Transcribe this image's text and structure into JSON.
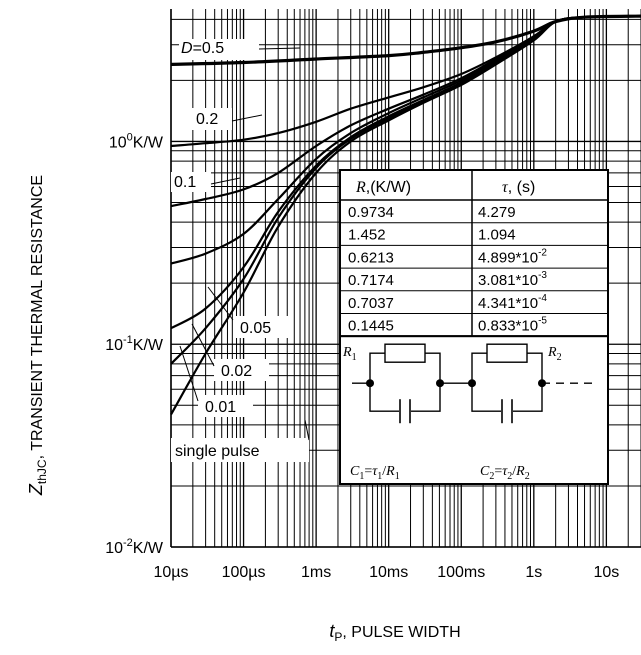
{
  "chart_data": {
    "type": "line",
    "title": "",
    "xlabel": "t",
    "xlabel_sub": "P",
    "xlabel_rest": ", PULSE WIDTH",
    "ylabel": "Z",
    "ylabel_sub": "thJC",
    "ylabel_rest": ", TRANSIENT THERMAL RESISTANCE",
    "x_scale": "log",
    "y_scale": "log",
    "xlim": [
      1e-05,
      30
    ],
    "ylim": [
      0.01,
      4.5
    ],
    "grid": true,
    "x_ticks": [
      {
        "value": 1e-05,
        "label": "10µs"
      },
      {
        "value": 0.0001,
        "label": "100µs"
      },
      {
        "value": 0.001,
        "label": "1ms"
      },
      {
        "value": 0.01,
        "label": "10ms"
      },
      {
        "value": 0.1,
        "label": "100ms"
      },
      {
        "value": 1,
        "label": "1s"
      },
      {
        "value": 10,
        "label": "10s"
      }
    ],
    "y_ticks": [
      {
        "value": 1,
        "base": "10",
        "exp": "0",
        "unit": "K/W"
      },
      {
        "value": 0.1,
        "base": "10",
        "exp": "-1",
        "unit": "K/W"
      },
      {
        "value": 0.01,
        "base": "10",
        "exp": "-2",
        "unit": "K/W"
      }
    ],
    "series": [
      {
        "name": "D=0.5",
        "label_main": "D",
        "label_rest": "=0.5",
        "x": [
          1e-05,
          0.0001,
          0.001,
          0.01,
          0.03,
          0.1,
          0.3,
          1,
          2,
          5,
          30
        ],
        "y": [
          2.4,
          2.45,
          2.55,
          2.65,
          2.75,
          2.9,
          3.1,
          3.5,
          3.9,
          4.1,
          4.15
        ]
      },
      {
        "name": "0.2",
        "label_main": "0.2",
        "label_rest": "",
        "x": [
          1e-05,
          3e-05,
          0.0001,
          0.0003,
          0.001,
          0.003,
          0.01,
          0.03,
          0.1,
          0.3,
          1,
          2,
          5,
          30
        ],
        "y": [
          0.95,
          0.98,
          1.02,
          1.1,
          1.25,
          1.45,
          1.65,
          1.85,
          2.15,
          2.6,
          3.3,
          3.9,
          4.1,
          4.15
        ]
      },
      {
        "name": "0.1",
        "label_main": "0.1",
        "label_rest": "",
        "x": [
          1e-05,
          3e-05,
          0.0001,
          0.0003,
          0.001,
          0.003,
          0.01,
          0.03,
          0.1,
          0.3,
          1,
          2,
          5,
          30
        ],
        "y": [
          0.48,
          0.52,
          0.58,
          0.7,
          0.95,
          1.2,
          1.45,
          1.7,
          2.05,
          2.55,
          3.3,
          3.9,
          4.1,
          4.15
        ]
      },
      {
        "name": "0.05",
        "label_main": "0.05",
        "label_rest": "",
        "x": [
          1e-05,
          3e-05,
          0.0001,
          0.0003,
          0.001,
          0.003,
          0.01,
          0.03,
          0.1,
          0.3,
          1,
          2,
          5,
          30
        ],
        "y": [
          0.25,
          0.28,
          0.35,
          0.52,
          0.82,
          1.1,
          1.38,
          1.65,
          2.0,
          2.5,
          3.25,
          3.9,
          4.1,
          4.15
        ]
      },
      {
        "name": "0.02",
        "label_main": "0.02",
        "label_rest": "",
        "x": [
          1e-05,
          3e-05,
          0.0001,
          0.0003,
          0.001,
          0.003,
          0.01,
          0.03,
          0.1,
          0.3,
          1,
          2,
          5,
          30
        ],
        "y": [
          0.12,
          0.15,
          0.24,
          0.45,
          0.76,
          1.05,
          1.33,
          1.6,
          1.95,
          2.45,
          3.2,
          3.9,
          4.1,
          4.15
        ]
      },
      {
        "name": "0.01",
        "label_main": "0.01",
        "label_rest": "",
        "x": [
          1e-05,
          3e-05,
          0.0001,
          0.0003,
          0.001,
          0.003,
          0.01,
          0.03,
          0.1,
          0.3,
          1,
          2,
          5,
          30
        ],
        "y": [
          0.08,
          0.12,
          0.21,
          0.42,
          0.74,
          1.03,
          1.3,
          1.58,
          1.93,
          2.42,
          3.2,
          3.9,
          4.1,
          4.15
        ]
      },
      {
        "name": "single pulse",
        "label_main": "single pulse",
        "label_rest": "",
        "x": [
          1e-05,
          3e-05,
          0.0001,
          0.0003,
          0.001,
          0.003,
          0.01,
          0.03,
          0.1,
          0.3,
          1,
          2,
          5,
          30
        ],
        "y": [
          0.045,
          0.09,
          0.18,
          0.38,
          0.7,
          1.0,
          1.27,
          1.55,
          1.9,
          2.4,
          3.15,
          3.9,
          4.1,
          4.15
        ]
      }
    ],
    "table": {
      "headers": [
        {
          "main": "R",
          "rest": ",(K/W)"
        },
        {
          "main": "τ",
          "rest": ", (s)"
        }
      ],
      "rows": [
        {
          "r": "0.9734",
          "tau_base": "4.279",
          "tau_exp": ""
        },
        {
          "r": "1.452",
          "tau_base": "1.094",
          "tau_exp": ""
        },
        {
          "r": "0.6213",
          "tau_base": "4.899*10",
          "tau_exp": "-2"
        },
        {
          "r": "0.7174",
          "tau_base": "3.081*10",
          "tau_exp": "-3"
        },
        {
          "r": "0.7037",
          "tau_base": "4.341*10",
          "tau_exp": "-4"
        },
        {
          "r": "0.1445",
          "tau_base": "0.833*10",
          "tau_exp": "-5"
        }
      ]
    },
    "network": {
      "r1": {
        "main": "R",
        "sub": "1"
      },
      "r2": {
        "main": "R",
        "sub": "2"
      },
      "c1": {
        "main": "C",
        "sub": "1",
        "eq": "=",
        "tau": "τ",
        "tau_sub": "1",
        "div": "/",
        "r": "R",
        "r_sub": "1"
      },
      "c2": {
        "main": "C",
        "sub": "2",
        "eq": "=",
        "tau": "τ",
        "tau_sub": "2",
        "div": "/",
        "r": "R",
        "r_sub": "2"
      }
    }
  }
}
